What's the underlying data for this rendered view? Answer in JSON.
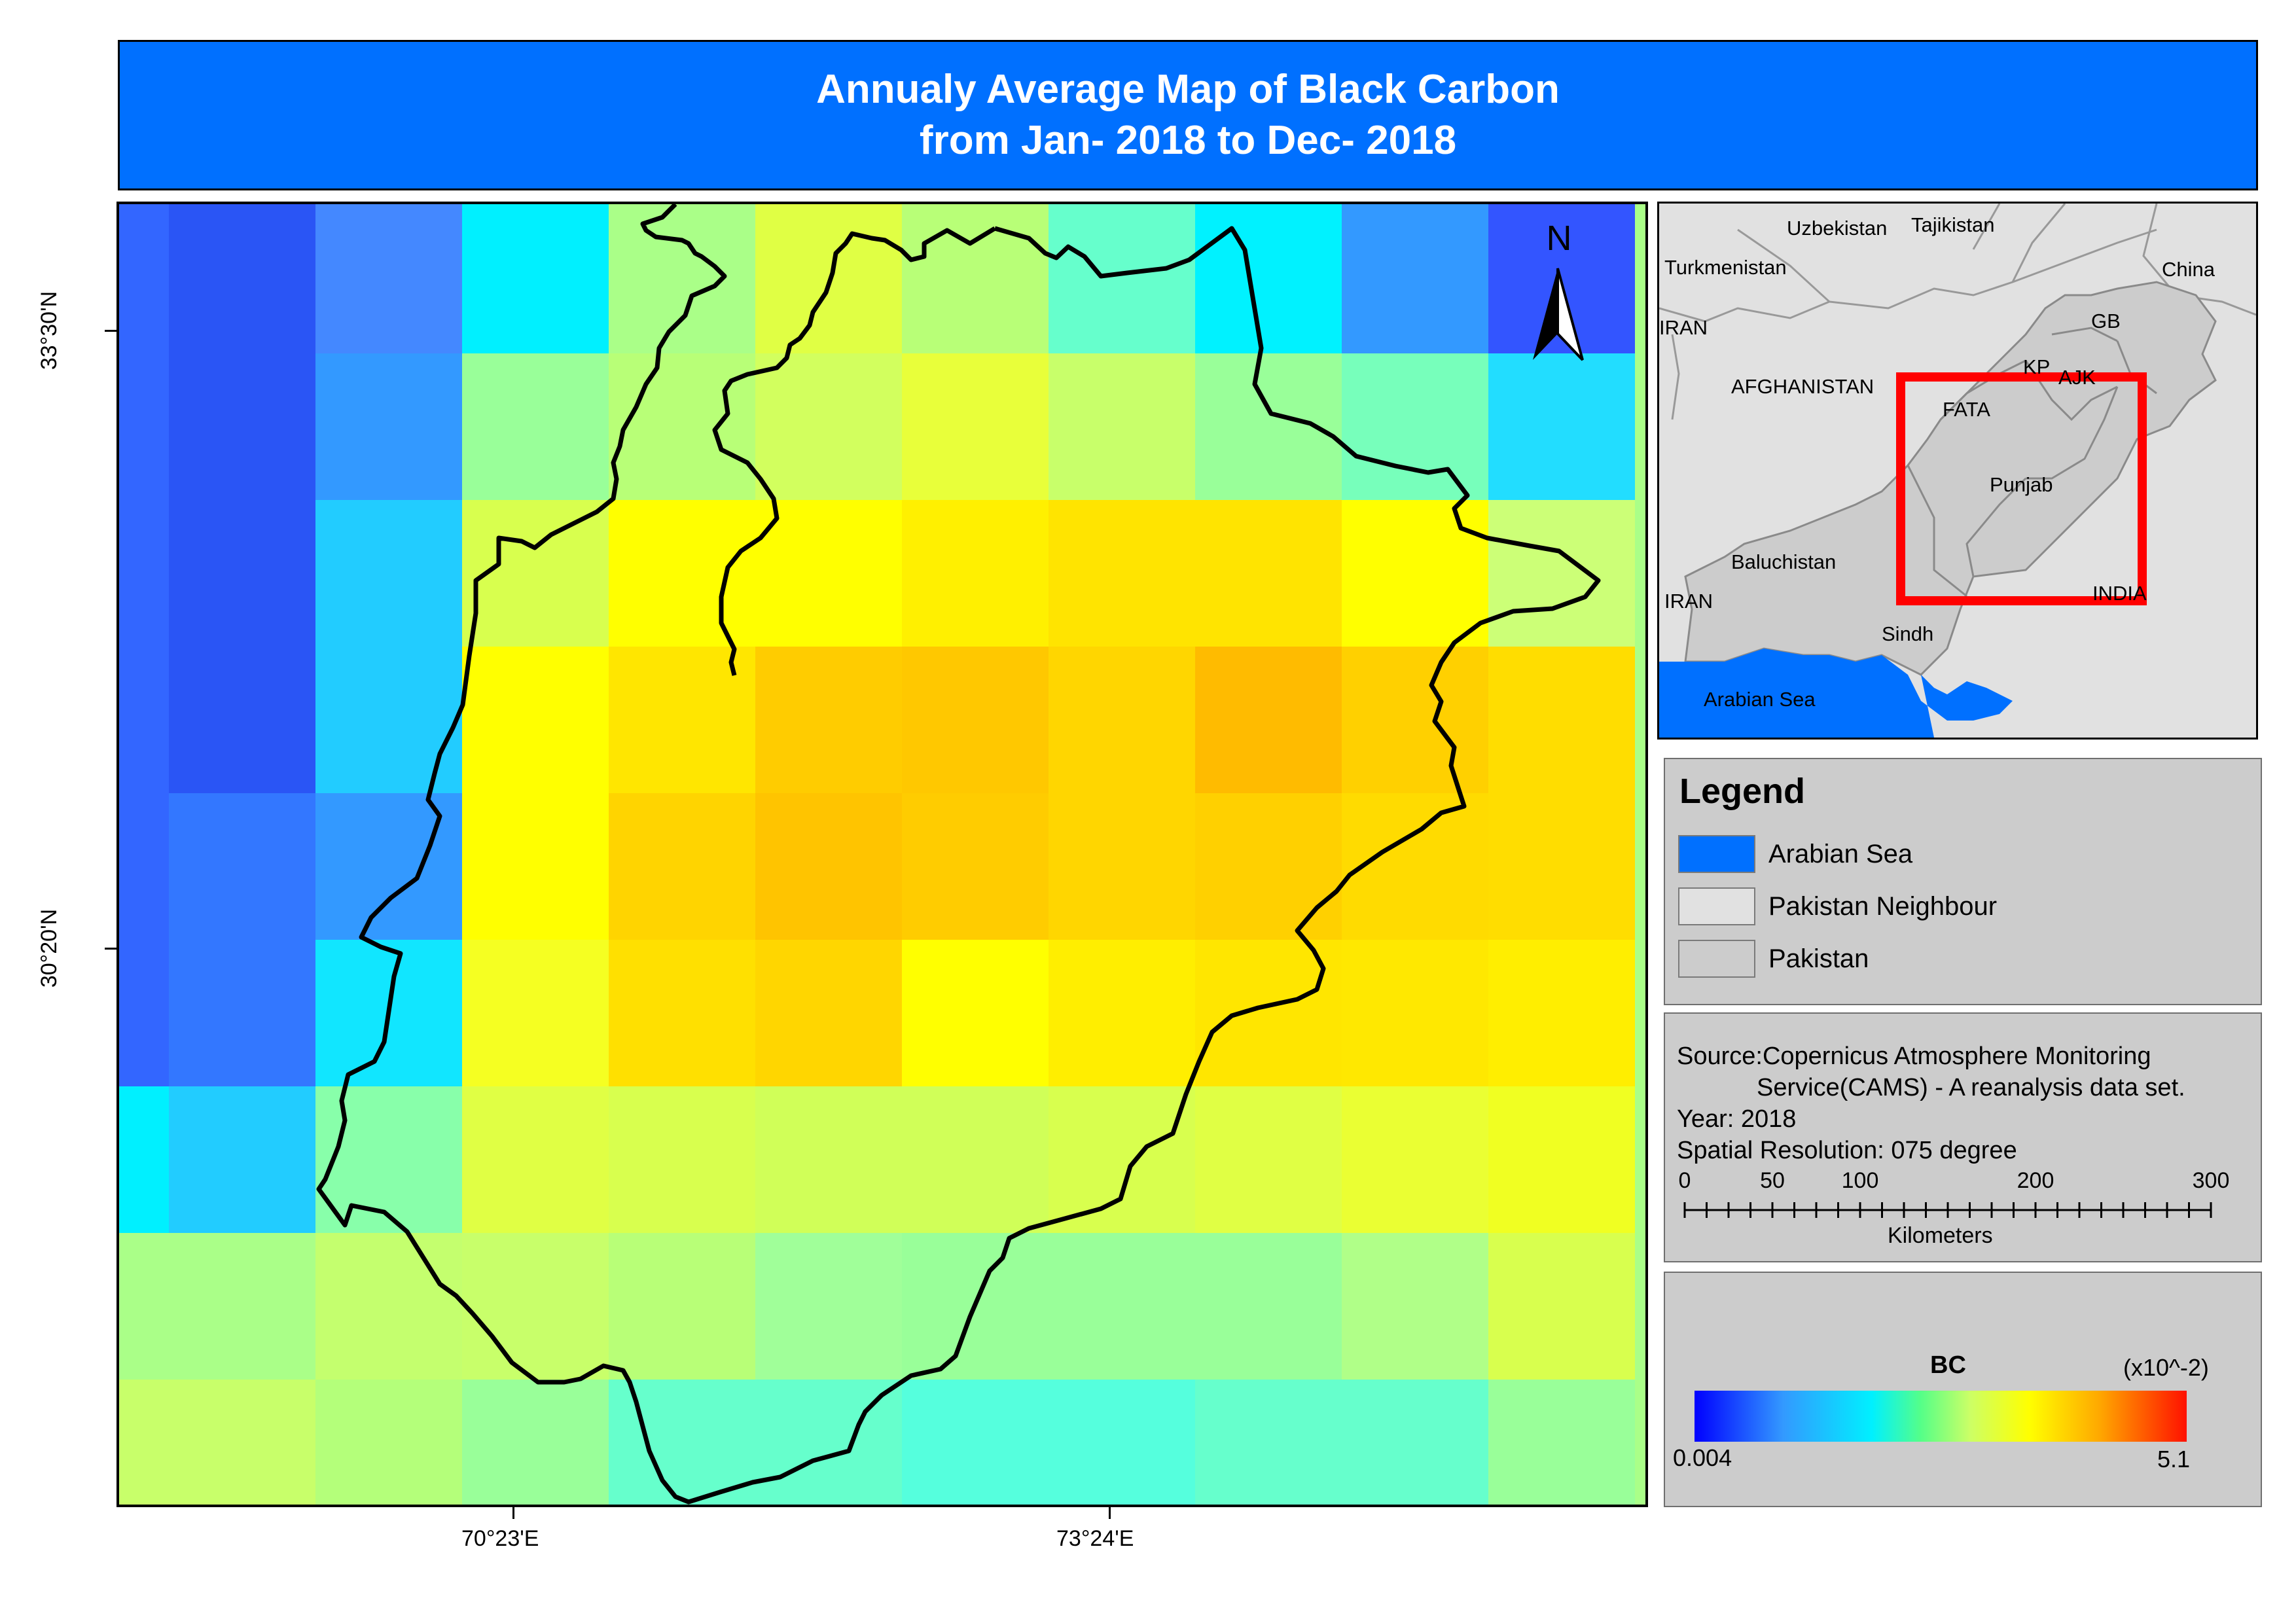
{
  "title": {
    "line1": "Annualy Average Map of Black Carbon",
    "line2": "from Jan- 2018 to Dec- 2018"
  },
  "main_map": {
    "north_label": "N",
    "lon_labels": [
      "70°23'E",
      "73°24'E"
    ],
    "lat_labels": [
      "33°30'N",
      "30°20'N"
    ],
    "grid_colors": [
      [
        "#3366ff",
        "#2a55f5",
        "#4488ff",
        "#00f0ff",
        "#aaff88",
        "#e0ff44",
        "#b8ff77",
        "#66ffcc",
        "#00f2ff",
        "#3399ff",
        "#3355ff"
      ],
      [
        "#3366ff",
        "#2a55f5",
        "#3399ff",
        "#99ff99",
        "#b8ff77",
        "#d2ff5e",
        "#e8ff3a",
        "#c8ff6a",
        "#99ff99",
        "#77ffbb",
        "#22ddff"
      ],
      [
        "#3366ff",
        "#2a55f5",
        "#22ccff",
        "#d8ff4e",
        "#ffff00",
        "#ffff00",
        "#fff000",
        "#ffe400",
        "#ffe400",
        "#ffff00",
        "#ccff77"
      ],
      [
        "#3366ff",
        "#2a55f5",
        "#22ccff",
        "#ffff00",
        "#ffe600",
        "#ffcc00",
        "#ffc800",
        "#ffd600",
        "#ffbb00",
        "#ffd000",
        "#ffdd00"
      ],
      [
        "#3366ff",
        "#3377ff",
        "#3399ff",
        "#ffff00",
        "#ffd400",
        "#ffc400",
        "#ffcc00",
        "#ffd600",
        "#ffd000",
        "#ffdb00",
        "#ffdd00"
      ],
      [
        "#3366ff",
        "#3377ff",
        "#11e6ff",
        "#f5ff22",
        "#ffe000",
        "#ffd600",
        "#ffff00",
        "#ffee00",
        "#ffe600",
        "#ffe800",
        "#ffee00"
      ],
      [
        "#00f0ff",
        "#22ccff",
        "#88ffaa",
        "#e0ff44",
        "#d8ff4e",
        "#d0ff58",
        "#d0ff58",
        "#d8ff4e",
        "#e0ff44",
        "#eaff33",
        "#f0ff22"
      ],
      [
        "#aaff88",
        "#aaff88",
        "#c4ff6e",
        "#c8ff6a",
        "#b8ff77",
        "#a0ff99",
        "#99ff99",
        "#99ff99",
        "#99ff99",
        "#b0ff88",
        "#d8ff4e"
      ],
      [
        "#c8ff6a",
        "#c8ff6a",
        "#b4ff7a",
        "#99ff99",
        "#66ffcc",
        "#66ffcc",
        "#55ffdd",
        "#55ffdd",
        "#66ffcc",
        "#66ffcc",
        "#99ff99"
      ]
    ]
  },
  "inset_map": {
    "labels": {
      "uzbekistan": "Uzbekistan",
      "tajikistan": "Tajikistan",
      "turkmenistan": "Turkmenistan",
      "china": "China",
      "iran_top": "IRAN",
      "gb": "GB",
      "kp": "KP",
      "ajk": "AJK",
      "afghanistan": "AFGHANISTAN",
      "fata": "FATA",
      "punjab": "Punjab",
      "baluchistan": "Baluchistan",
      "iran_bottom": "IRAN",
      "india": "INDIA",
      "sindh": "Sindh",
      "arabian_sea": "Arabian Sea"
    },
    "colors": {
      "neighbour": "#e1e1e1",
      "pakistan": "#cccccc",
      "sea": "#0070ff",
      "extent": "#ff0000"
    }
  },
  "legend": {
    "title": "Legend",
    "items": [
      {
        "label": "Arabian Sea",
        "color": "#0070ff"
      },
      {
        "label": "Pakistan Neighbour",
        "color": "#e1e1e1"
      },
      {
        "label": "Pakistan",
        "color": "#cccccc"
      }
    ]
  },
  "info": {
    "source_line1": "Source:Copernicus Atmosphere Monitoring",
    "source_line2": "Service(CAMS) - A reanalysis data set.",
    "year": "Year: 2018",
    "resolution": "Spatial Resolution: 075 degree",
    "scale_ticks": [
      "0",
      "50",
      "100",
      "200",
      "300"
    ],
    "scale_unit": "Kilometers"
  },
  "colorbar": {
    "title": "BC",
    "unit": "(x10^-2)",
    "min_label": "0.004",
    "max_label": "5.1"
  }
}
